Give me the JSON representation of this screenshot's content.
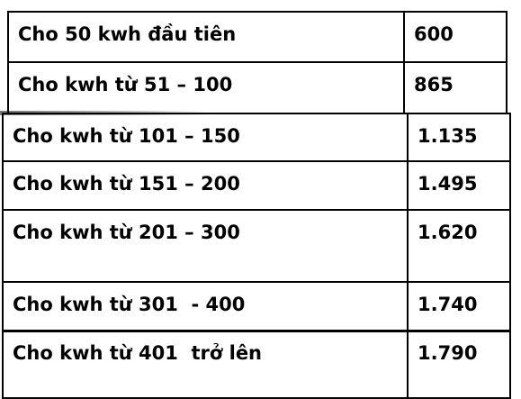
{
  "table": {
    "rows": [
      [
        "Cho 50 kwh đầu tiên",
        "600"
      ],
      [
        "Cho kwh từ 51 – 100",
        "865"
      ],
      [
        "Cho kwh từ 101 – 150",
        "1.135"
      ],
      [
        "Cho kwh từ 151 – 200",
        "1.495"
      ],
      [
        "Cho kwh từ 201 – 300",
        "1.620"
      ],
      [
        "Cho kwh từ 301  - 400",
        "1.740"
      ],
      [
        "Cho kwh từ 401  trở lên",
        "1.790"
      ]
    ]
  }
}
